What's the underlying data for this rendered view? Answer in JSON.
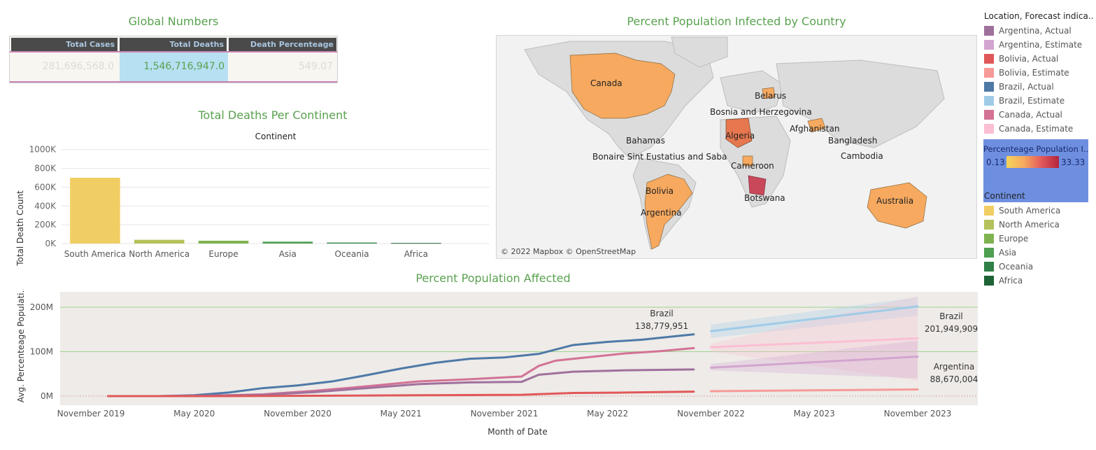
{
  "global": {
    "title": "Global Numbers",
    "headers": [
      "Total Cases",
      "Total Deaths",
      "Death Percenteage"
    ],
    "values": [
      "281,696,568.0",
      "1,546,716,947.0",
      "549.07"
    ]
  },
  "map": {
    "title": "Percent Population Infected by Country",
    "credit": "© 2022 Mapbox © OpenStreetMap",
    "labels": [
      "Canada",
      "Belarus",
      "Bosnia and Herzegovina",
      "Afghanistan",
      "Algeria",
      "Bahamas",
      "Bangladesh",
      "Bonaire Sint Eustatius and Saba",
      "Cambodia",
      "Cameroon",
      "Bolivia",
      "Botswana",
      "Argentina",
      "Australia"
    ]
  },
  "legend_location": {
    "title": "Location, Forecast indica..",
    "items": [
      {
        "label": "Argentina, Actual",
        "color": "#a0709d"
      },
      {
        "label": "Argentina, Estimate",
        "color": "#d2a5cf"
      },
      {
        "label": "Bolivia, Actual",
        "color": "#e15759"
      },
      {
        "label": "Bolivia, Estimate",
        "color": "#f79a98"
      },
      {
        "label": "Brazil, Actual",
        "color": "#4e79a7"
      },
      {
        "label": "Brazil, Estimate",
        "color": "#a0cbe8"
      },
      {
        "label": "Canada, Actual",
        "color": "#d37295"
      },
      {
        "label": "Canada, Estimate",
        "color": "#fabfd2"
      }
    ]
  },
  "color_scale": {
    "title": "Percenteage Population I..",
    "min": "0.13",
    "max": "33.33"
  },
  "legend_continent": {
    "title": "Continent",
    "items": [
      {
        "label": "South America",
        "color": "#f1ce63"
      },
      {
        "label": "North America",
        "color": "#b5c15a"
      },
      {
        "label": "Europe",
        "color": "#7fb351"
      },
      {
        "label": "Asia",
        "color": "#4e9f50"
      },
      {
        "label": "Oceania",
        "color": "#2e8047"
      },
      {
        "label": "Africa",
        "color": "#1d6336"
      }
    ]
  },
  "chart_data": [
    {
      "type": "bar",
      "title": "Total Deaths Per Continent",
      "header": "Continent",
      "ylabel": "Total Death Count",
      "categories": [
        "South America",
        "North America",
        "Europe",
        "Asia",
        "Oceania",
        "Africa"
      ],
      "values": [
        700000,
        40000,
        30000,
        20000,
        10000,
        6000
      ],
      "colors": [
        "#f1ce63",
        "#b5c15a",
        "#7fb351",
        "#4e9f50",
        "#2e8047",
        "#1d6336"
      ],
      "yticks": [
        0,
        200000,
        400000,
        600000,
        800000,
        1000000
      ],
      "ytick_labels": [
        "0K",
        "200K",
        "400K",
        "600K",
        "800K",
        "1000K"
      ],
      "ylim": [
        0,
        1050000
      ]
    },
    {
      "type": "line",
      "title": "Percent Population Affected",
      "xlabel": "Month of Date",
      "ylabel": "Avg. Percenteage Populati..",
      "ytick_labels": [
        "0M",
        "100M",
        "200M"
      ],
      "yticks": [
        0,
        100,
        200
      ],
      "xtick_labels": [
        "November 2019",
        "May 2020",
        "November 2020",
        "May 2021",
        "November 2021",
        "May 2022",
        "November 2022",
        "May 2023",
        "November 2023"
      ],
      "xticks": [
        "2019-11",
        "2020-05",
        "2020-11",
        "2021-05",
        "2021-11",
        "2022-05",
        "2022-11",
        "2023-05",
        "2023-11"
      ],
      "series": [
        {
          "name": "Brazil, Actual",
          "color": "#4e79a7",
          "x": [
            "2020-01",
            "2020-03",
            "2020-05",
            "2020-07",
            "2020-09",
            "2020-11",
            "2021-01",
            "2021-03",
            "2021-05",
            "2021-07",
            "2021-09",
            "2021-11",
            "2022-01",
            "2022-03",
            "2022-05",
            "2022-07",
            "2022-09",
            "2022-10"
          ],
          "y": [
            0,
            0,
            2,
            8,
            18,
            24,
            33,
            47,
            62,
            75,
            84,
            87,
            95,
            115,
            122,
            127,
            135,
            139
          ]
        },
        {
          "name": "Canada, Actual",
          "color": "#d37295",
          "x": [
            "2019-12",
            "2020-03",
            "2020-06",
            "2020-09",
            "2020-12",
            "2021-03",
            "2021-06",
            "2021-09",
            "2021-12",
            "2022-01",
            "2022-02",
            "2022-04",
            "2022-06",
            "2022-08",
            "2022-10"
          ],
          "y": [
            0,
            0,
            1,
            4,
            12,
            22,
            33,
            38,
            44,
            68,
            80,
            88,
            96,
            101,
            108
          ]
        },
        {
          "name": "Argentina, Actual",
          "color": "#a0709d",
          "x": [
            "2019-12",
            "2020-03",
            "2020-06",
            "2020-09",
            "2020-12",
            "2021-03",
            "2021-06",
            "2021-09",
            "2021-12",
            "2022-01",
            "2022-03",
            "2022-06",
            "2022-10"
          ],
          "y": [
            0,
            0,
            1,
            3,
            9,
            18,
            27,
            31,
            32,
            48,
            55,
            58,
            60
          ]
        },
        {
          "name": "Bolivia, Actual",
          "color": "#e15759",
          "x": [
            "2019-12",
            "2020-06",
            "2021-01",
            "2021-06",
            "2021-12",
            "2022-03",
            "2022-06",
            "2022-10"
          ],
          "y": [
            0,
            0,
            1,
            2,
            3,
            7,
            8,
            10
          ]
        },
        {
          "name": "Brazil, Estimate",
          "color": "#a0cbe8",
          "x": [
            "2022-11",
            "2023-11"
          ],
          "y": [
            146,
            201.9
          ],
          "band": [
            [
              131,
              161
            ],
            [
              181,
              222
            ]
          ]
        },
        {
          "name": "Canada, Estimate",
          "color": "#fabfd2",
          "x": [
            "2022-11",
            "2023-11"
          ],
          "y": [
            110,
            130
          ],
          "band": [
            [
              100,
              118
            ],
            [
              35,
              225
            ]
          ]
        },
        {
          "name": "Argentina, Estimate",
          "color": "#d2a5cf",
          "x": [
            "2022-11",
            "2023-11"
          ],
          "y": [
            64,
            88.7
          ],
          "band": [
            [
              58,
              72
            ],
            [
              40,
              125
            ]
          ]
        },
        {
          "name": "Bolivia, Estimate",
          "color": "#f79a98",
          "x": [
            "2022-11",
            "2023-11"
          ],
          "y": [
            11,
            15
          ]
        }
      ],
      "annotations": [
        {
          "name": "Brazil",
          "value": "138,779,951"
        },
        {
          "name": "Brazil",
          "value": "201,949,909"
        },
        {
          "name": "Argentina",
          "value": "88,670,004"
        }
      ]
    }
  ]
}
